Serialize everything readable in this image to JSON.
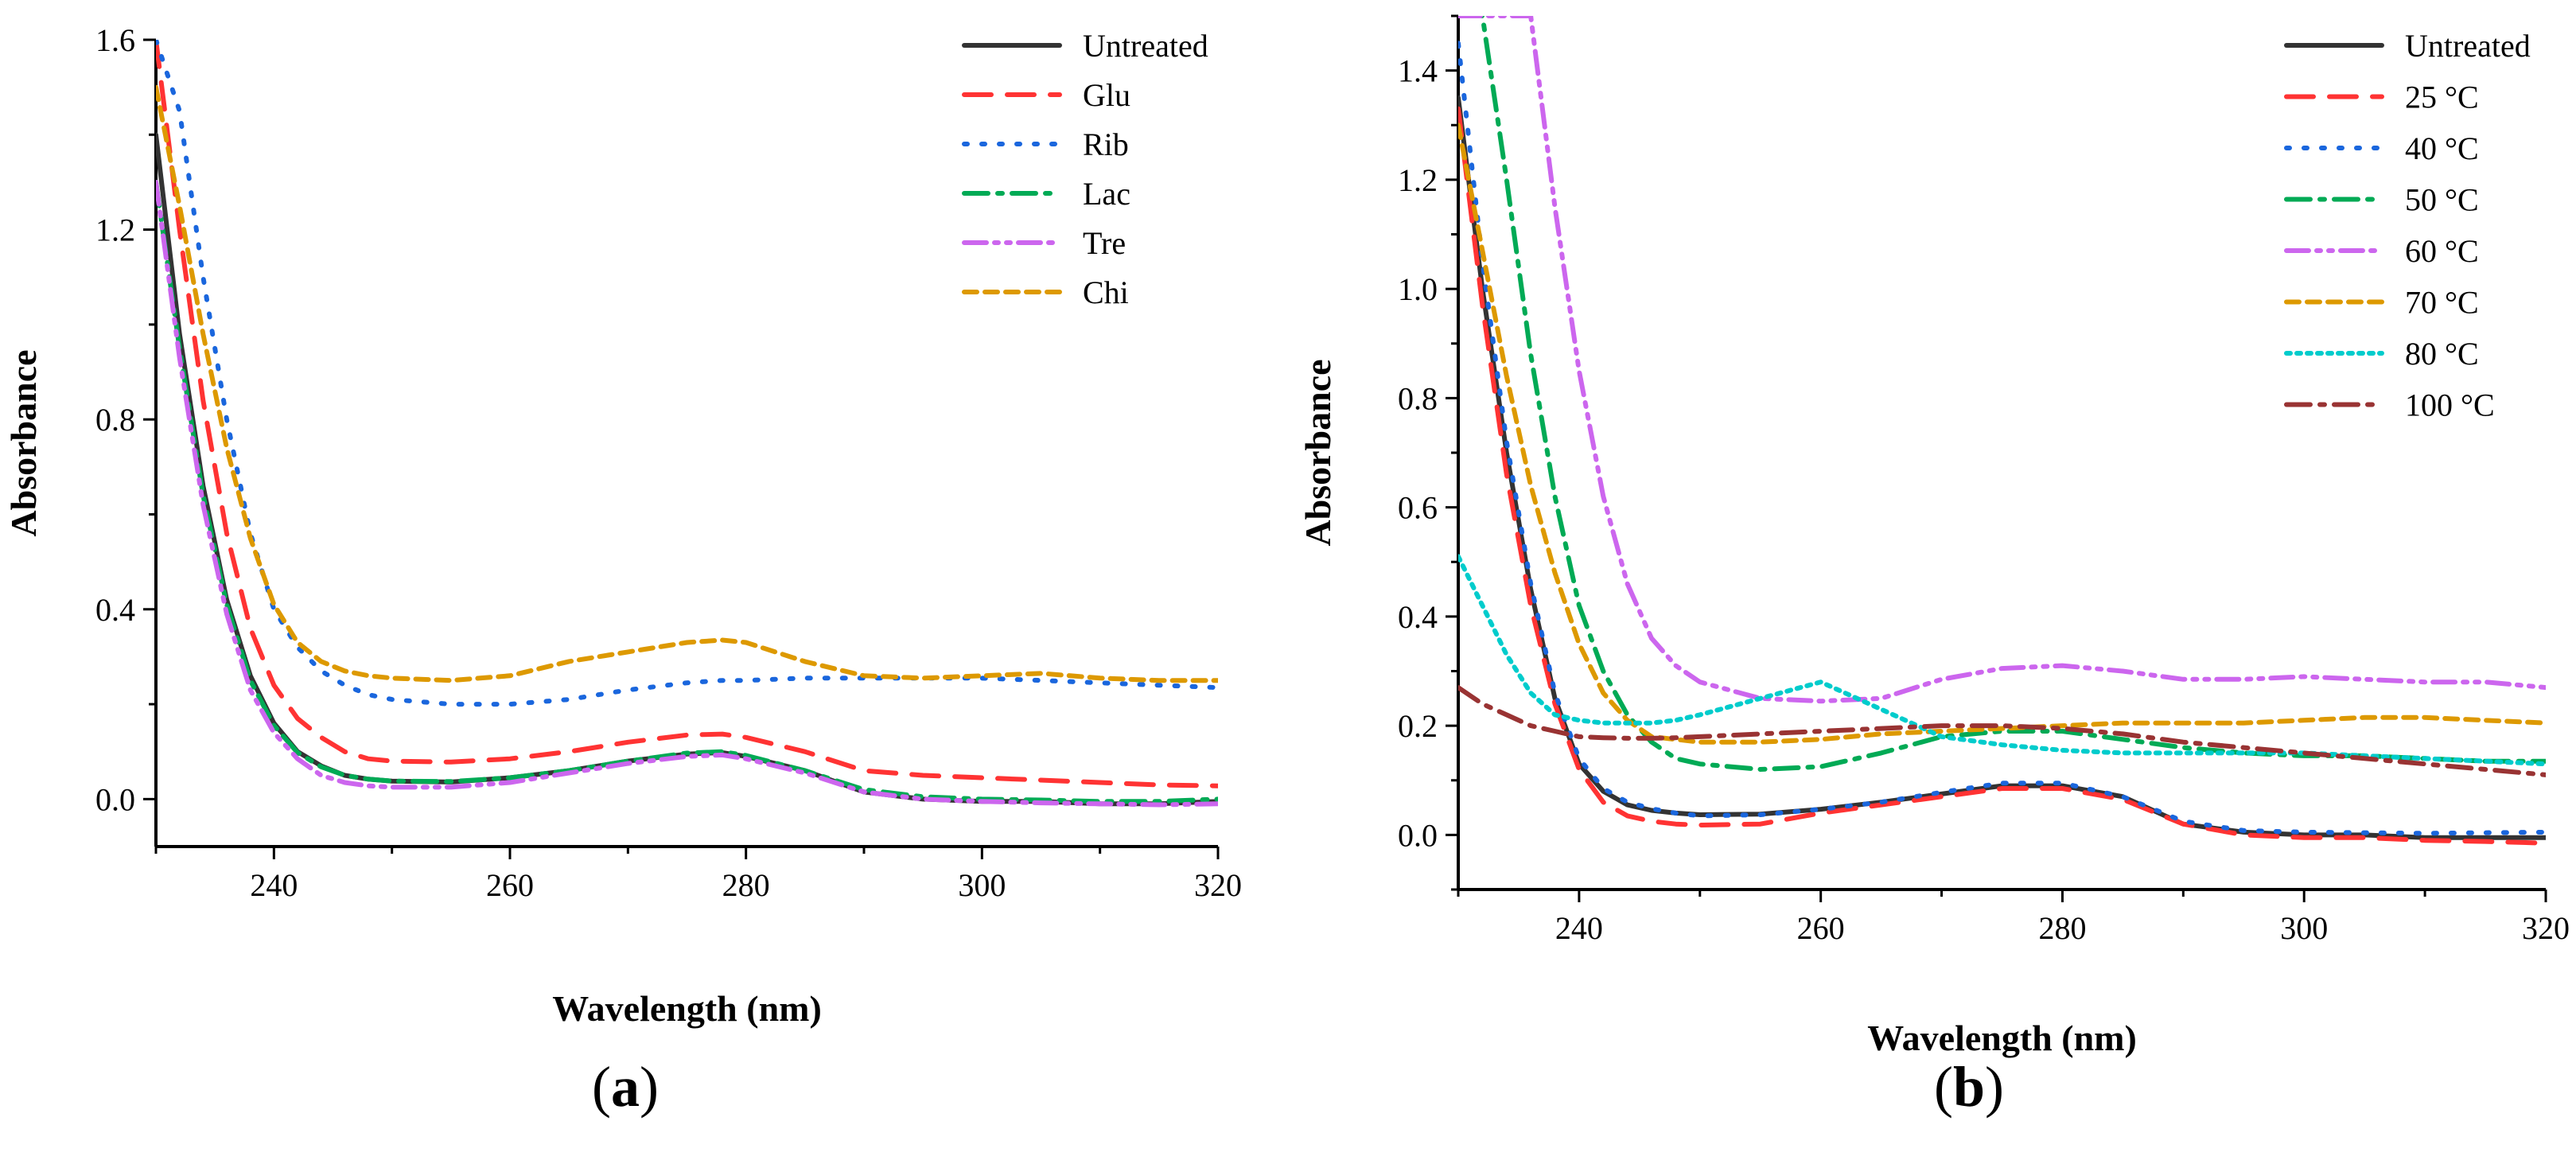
{
  "chart_data": [
    {
      "type": "line",
      "panel_label_open": "(",
      "panel_label_letter": "a",
      "panel_label_close": ")",
      "xlabel": "Wavelength (nm)",
      "ylabel": "Absorbance",
      "xlim": [
        230,
        320
      ],
      "ylim": [
        -0.1,
        1.6
      ],
      "xticks": [
        240,
        260,
        280,
        300,
        320
      ],
      "yticks": [
        0.0,
        0.4,
        0.8,
        1.2,
        1.6
      ],
      "xtick_labels": [
        "240",
        "260",
        "280",
        "300",
        "320"
      ],
      "ytick_labels": [
        "0.0",
        "0.4",
        "0.8",
        "1.2",
        "1.6"
      ],
      "legend_position": "top-right",
      "x": [
        230,
        232,
        234,
        236,
        238,
        240,
        242,
        244,
        246,
        248,
        250,
        255,
        260,
        265,
        270,
        275,
        278,
        280,
        285,
        290,
        295,
        300,
        305,
        310,
        315,
        320
      ],
      "series": [
        {
          "name": "Untreated",
          "color": "#333333",
          "dash": "solid",
          "values": [
            1.4,
            0.98,
            0.66,
            0.42,
            0.26,
            0.16,
            0.1,
            0.07,
            0.05,
            0.042,
            0.038,
            0.036,
            0.045,
            0.06,
            0.08,
            0.095,
            0.098,
            0.09,
            0.06,
            0.015,
            0.0,
            -0.005,
            -0.005,
            -0.01,
            -0.01,
            -0.005
          ]
        },
        {
          "name": "Glu",
          "color": "#ff3333",
          "dash": "long-dash",
          "values": [
            1.6,
            1.2,
            0.84,
            0.56,
            0.36,
            0.24,
            0.17,
            0.13,
            0.1,
            0.085,
            0.08,
            0.078,
            0.085,
            0.1,
            0.12,
            0.135,
            0.137,
            0.13,
            0.1,
            0.06,
            0.05,
            0.045,
            0.04,
            0.035,
            0.03,
            0.028
          ]
        },
        {
          "name": "Rib",
          "color": "#1a66dd",
          "dash": "dot",
          "values": [
            1.6,
            1.45,
            1.1,
            0.8,
            0.56,
            0.4,
            0.32,
            0.27,
            0.24,
            0.22,
            0.21,
            0.2,
            0.2,
            0.21,
            0.23,
            0.245,
            0.25,
            0.25,
            0.255,
            0.255,
            0.255,
            0.255,
            0.25,
            0.245,
            0.24,
            0.235
          ]
        },
        {
          "name": "Lac",
          "color": "#00aa55",
          "dash": "dash-dot",
          "values": [
            1.3,
            0.95,
            0.64,
            0.41,
            0.25,
            0.155,
            0.098,
            0.068,
            0.05,
            0.042,
            0.038,
            0.037,
            0.045,
            0.06,
            0.08,
            0.097,
            0.1,
            0.092,
            0.06,
            0.02,
            0.005,
            0.0,
            -0.002,
            -0.005,
            -0.005,
            0.0
          ]
        },
        {
          "name": "Tre",
          "color": "#cc66ee",
          "dash": "dash-dot-dot",
          "values": [
            1.3,
            0.93,
            0.62,
            0.39,
            0.23,
            0.14,
            0.085,
            0.05,
            0.035,
            0.028,
            0.025,
            0.025,
            0.035,
            0.055,
            0.075,
            0.09,
            0.093,
            0.085,
            0.055,
            0.015,
            0.0,
            -0.005,
            -0.008,
            -0.01,
            -0.012,
            -0.01
          ]
        },
        {
          "name": "Chi",
          "color": "#dd9900",
          "dash": "short-dash",
          "values": [
            1.5,
            1.25,
            0.98,
            0.74,
            0.55,
            0.41,
            0.33,
            0.29,
            0.27,
            0.26,
            0.255,
            0.25,
            0.26,
            0.29,
            0.31,
            0.33,
            0.335,
            0.33,
            0.29,
            0.26,
            0.255,
            0.26,
            0.265,
            0.255,
            0.25,
            0.25
          ]
        }
      ]
    },
    {
      "type": "line",
      "panel_label_open": "(",
      "panel_label_letter": "b",
      "panel_label_close": ")",
      "xlabel": "Wavelength (nm)",
      "ylabel": "Absorbance",
      "xlim": [
        230,
        320
      ],
      "ylim": [
        -0.1,
        1.5
      ],
      "xticks": [
        240,
        260,
        280,
        300,
        320
      ],
      "yticks": [
        0.0,
        0.2,
        0.4,
        0.6,
        0.8,
        1.0,
        1.2,
        1.4
      ],
      "xtick_labels": [
        "240",
        "260",
        "280",
        "300",
        "320"
      ],
      "ytick_labels": [
        "0.0",
        "0.2",
        "0.4",
        "0.6",
        "0.8",
        "1.0",
        "1.2",
        "1.4"
      ],
      "legend_position": "top-right",
      "x": [
        230,
        232,
        234,
        236,
        238,
        240,
        242,
        244,
        246,
        248,
        250,
        255,
        260,
        265,
        270,
        275,
        280,
        285,
        290,
        295,
        300,
        305,
        310,
        315,
        320
      ],
      "series": [
        {
          "name": "Untreated",
          "color": "#333333",
          "dash": "solid",
          "values": [
            1.35,
            1.0,
            0.7,
            0.45,
            0.25,
            0.13,
            0.08,
            0.055,
            0.045,
            0.04,
            0.037,
            0.038,
            0.047,
            0.06,
            0.075,
            0.09,
            0.09,
            0.07,
            0.02,
            0.005,
            0.0,
            0.0,
            -0.005,
            -0.005,
            -0.005
          ]
        },
        {
          "name": "25 °C",
          "color": "#ff3333",
          "dash": "long-dash",
          "values": [
            1.33,
            0.97,
            0.66,
            0.42,
            0.24,
            0.12,
            0.06,
            0.035,
            0.025,
            0.02,
            0.018,
            0.02,
            0.04,
            0.055,
            0.07,
            0.085,
            0.085,
            0.065,
            0.02,
            0.0,
            -0.005,
            -0.005,
            -0.01,
            -0.012,
            -0.015
          ]
        },
        {
          "name": "40 °C",
          "color": "#1a66dd",
          "dash": "dot",
          "values": [
            1.45,
            1.05,
            0.72,
            0.46,
            0.26,
            0.14,
            0.085,
            0.06,
            0.048,
            0.04,
            0.035,
            0.037,
            0.047,
            0.06,
            0.078,
            0.095,
            0.095,
            0.07,
            0.025,
            0.008,
            0.005,
            0.004,
            0.003,
            0.004,
            0.005
          ]
        },
        {
          "name": "50 °C",
          "color": "#00aa55",
          "dash": "dash-dot",
          "values": [
            1.5,
            1.5,
            1.2,
            0.88,
            0.62,
            0.42,
            0.3,
            0.22,
            0.17,
            0.14,
            0.13,
            0.12,
            0.125,
            0.15,
            0.18,
            0.19,
            0.19,
            0.175,
            0.16,
            0.15,
            0.145,
            0.145,
            0.14,
            0.135,
            0.135
          ]
        },
        {
          "name": "60 °C",
          "color": "#cc66ee",
          "dash": "dash-dot-dot",
          "values": [
            1.5,
            1.5,
            1.5,
            1.5,
            1.15,
            0.85,
            0.62,
            0.46,
            0.36,
            0.31,
            0.28,
            0.25,
            0.245,
            0.25,
            0.285,
            0.305,
            0.31,
            0.3,
            0.285,
            0.285,
            0.29,
            0.285,
            0.28,
            0.28,
            0.27
          ]
        },
        {
          "name": "70 °C",
          "color": "#dd9900",
          "dash": "short-dash",
          "values": [
            1.3,
            1.07,
            0.84,
            0.64,
            0.48,
            0.35,
            0.26,
            0.21,
            0.18,
            0.175,
            0.17,
            0.17,
            0.175,
            0.185,
            0.19,
            0.195,
            0.2,
            0.205,
            0.205,
            0.205,
            0.21,
            0.215,
            0.215,
            0.21,
            0.205
          ]
        },
        {
          "name": "80 °C",
          "color": "#00cccc",
          "dash": "dense-dot",
          "values": [
            0.51,
            0.42,
            0.33,
            0.26,
            0.22,
            0.21,
            0.205,
            0.205,
            0.205,
            0.21,
            0.22,
            0.25,
            0.28,
            0.23,
            0.18,
            0.165,
            0.155,
            0.15,
            0.15,
            0.15,
            0.15,
            0.145,
            0.14,
            0.135,
            0.13
          ]
        },
        {
          "name": "100 °C",
          "color": "#993333",
          "dash": "dash-dot",
          "values": [
            0.27,
            0.24,
            0.22,
            0.2,
            0.19,
            0.18,
            0.178,
            0.177,
            0.177,
            0.178,
            0.18,
            0.185,
            0.19,
            0.195,
            0.2,
            0.2,
            0.195,
            0.185,
            0.17,
            0.16,
            0.15,
            0.14,
            0.13,
            0.12,
            0.11
          ]
        }
      ]
    }
  ]
}
